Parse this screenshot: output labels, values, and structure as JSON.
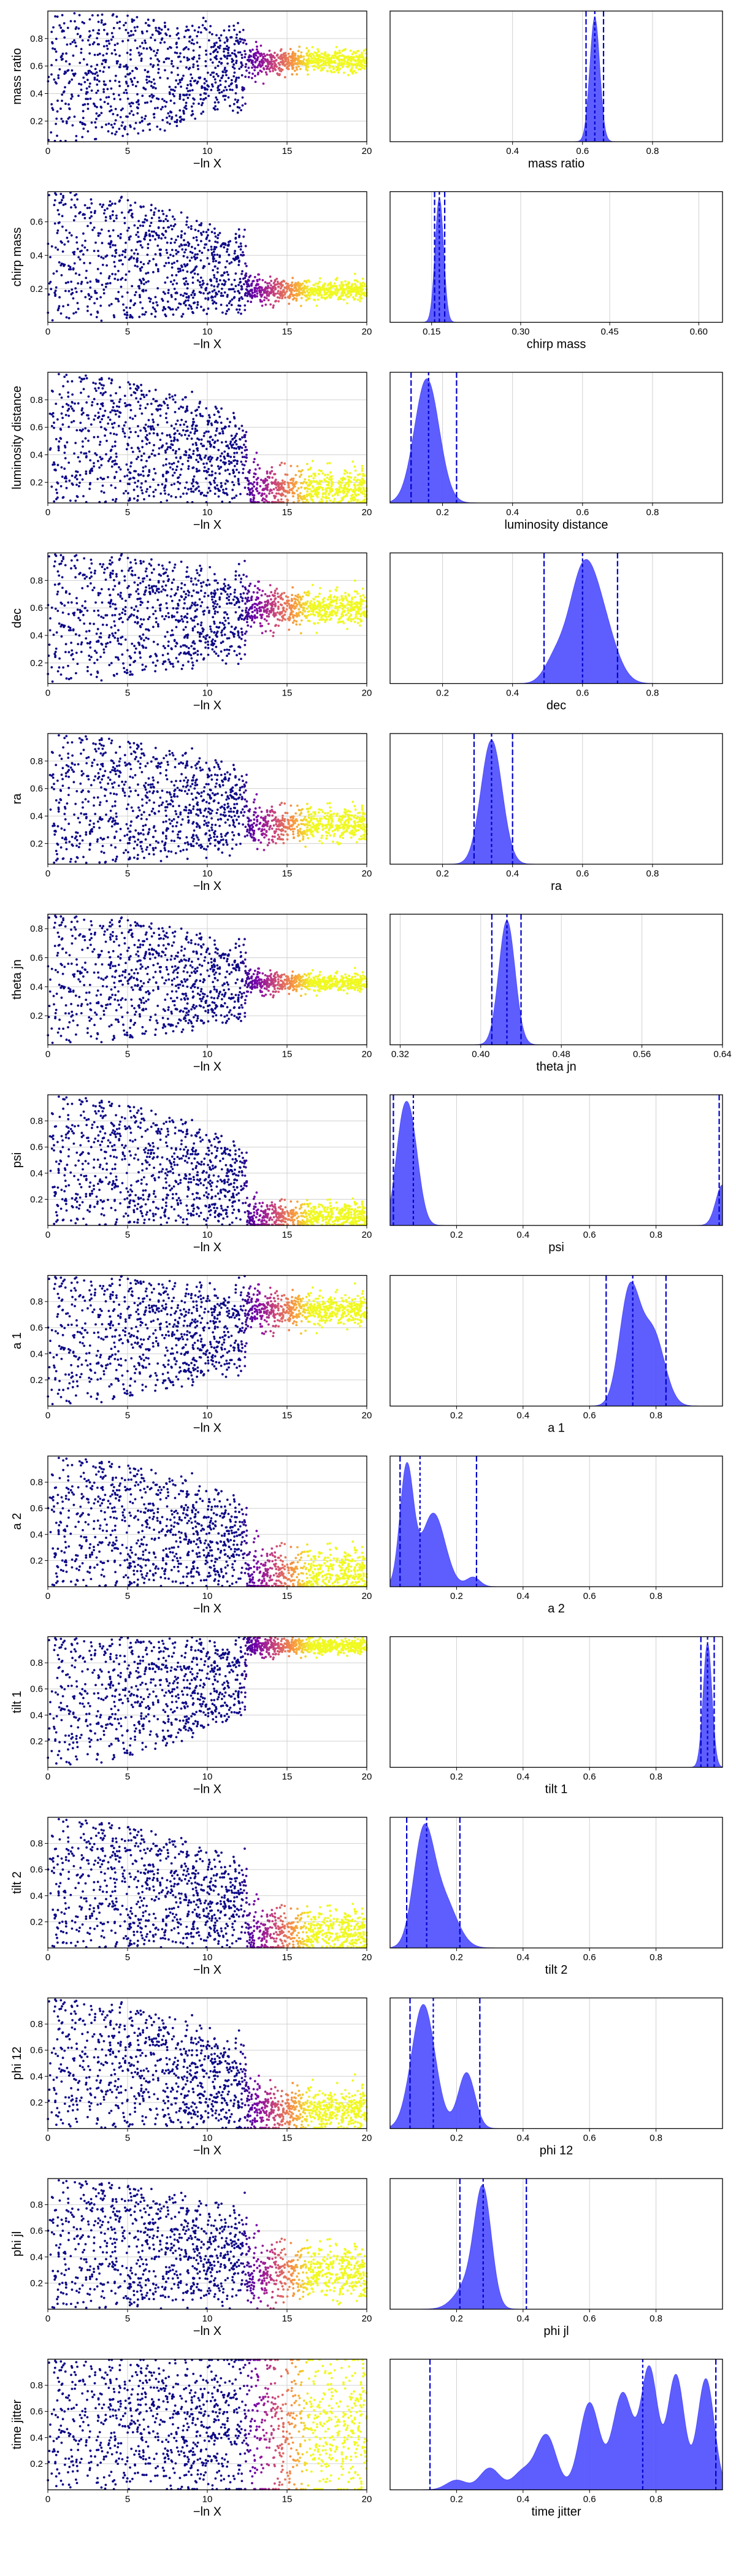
{
  "figure": {
    "trace_xlabel": "−ln X",
    "trace_xlim": [
      0,
      20
    ],
    "trace_xticks": [
      "0",
      "5",
      "10",
      "15",
      "20"
    ],
    "trace_grid": true,
    "hist_grid": true,
    "colormap": [
      "#0d0887",
      "#7e03a8",
      "#cc4778",
      "#f89540",
      "#f0f921"
    ],
    "fill_color": "#4c4cff",
    "line_color": "#0000cc"
  },
  "chart_data": [
    {
      "type": "scatter",
      "name": "mass ratio",
      "ylabel": "mass ratio",
      "yticks": [
        0.2,
        0.4,
        0.6,
        0.8
      ],
      "ylim": [
        0.05,
        1.0
      ],
      "hist_xlabel": "mass ratio",
      "hist_xlim": [
        0.05,
        1.0
      ],
      "hist_xticks": [
        0.4,
        0.6,
        0.8
      ],
      "quantiles": [
        0.61,
        0.635,
        0.66
      ],
      "peaks": [
        {
          "mu": 0.635,
          "sigma": 0.014,
          "h": 1.0
        }
      ],
      "converge": [
        0.635,
        0.04
      ]
    },
    {
      "type": "scatter",
      "name": "chirp mass",
      "ylabel": "chirp mass",
      "yticks": [
        0.2,
        0.4,
        0.6
      ],
      "ylim": [
        0.0,
        0.78
      ],
      "hist_xlabel": "chirp mass",
      "hist_xlim": [
        0.08,
        0.64
      ],
      "hist_xticks": [
        0.15,
        0.3,
        0.45,
        0.6
      ],
      "quantiles": [
        0.155,
        0.163,
        0.172
      ],
      "peaks": [
        {
          "mu": 0.163,
          "sigma": 0.007,
          "h": 1.0
        }
      ],
      "converge": [
        0.19,
        0.03
      ]
    },
    {
      "type": "scatter",
      "name": "luminosity distance",
      "ylabel": "luminosity distance",
      "yticks": [
        0.2,
        0.4,
        0.6,
        0.8
      ],
      "ylim": [
        0.05,
        1.0
      ],
      "hist_xlabel": "luminosity distance",
      "hist_xlim": [
        0.05,
        1.0
      ],
      "hist_xticks": [
        0.2,
        0.4,
        0.6,
        0.8
      ],
      "quantiles": [
        0.11,
        0.16,
        0.24
      ],
      "peaks": [
        {
          "mu": 0.155,
          "sigma": 0.035,
          "h": 1.0
        }
      ],
      "converge": [
        0.16,
        0.07
      ]
    },
    {
      "type": "scatter",
      "name": "dec",
      "ylabel": "dec",
      "yticks": [
        0.2,
        0.4,
        0.6,
        0.8
      ],
      "ylim": [
        0.05,
        1.0
      ],
      "hist_xlabel": "dec",
      "hist_xlim": [
        0.05,
        1.0
      ],
      "hist_xticks": [
        0.2,
        0.4,
        0.6,
        0.8
      ],
      "quantiles": [
        0.49,
        0.6,
        0.7
      ],
      "peaks": [
        {
          "mu": 0.6,
          "sigma": 0.04,
          "h": 1.0
        },
        {
          "mu": 0.66,
          "sigma": 0.04,
          "h": 0.45
        },
        {
          "mu": 0.52,
          "sigma": 0.03,
          "h": 0.2
        }
      ],
      "converge": [
        0.6,
        0.06
      ]
    },
    {
      "type": "scatter",
      "name": "ra",
      "ylabel": "ra",
      "yticks": [
        0.2,
        0.4,
        0.6,
        0.8
      ],
      "ylim": [
        0.05,
        1.0
      ],
      "hist_xlabel": "ra",
      "hist_xlim": [
        0.05,
        1.0
      ],
      "hist_xticks": [
        0.2,
        0.4,
        0.6,
        0.8
      ],
      "quantiles": [
        0.29,
        0.34,
        0.4
      ],
      "peaks": [
        {
          "mu": 0.34,
          "sigma": 0.03,
          "h": 1.0
        }
      ],
      "converge": [
        0.34,
        0.06
      ]
    },
    {
      "type": "scatter",
      "name": "theta jn",
      "ylabel": "theta jn",
      "yticks": [
        0.2,
        0.4,
        0.6,
        0.8
      ],
      "ylim": [
        0.0,
        0.9
      ],
      "hist_xlabel": "theta jn",
      "hist_xlim": [
        0.31,
        0.64
      ],
      "hist_xticks": [
        0.32,
        0.4,
        0.48,
        0.56,
        0.64
      ],
      "quantiles": [
        0.411,
        0.426,
        0.44
      ],
      "peaks": [
        {
          "mu": 0.426,
          "sigma": 0.008,
          "h": 1.0
        }
      ],
      "converge": [
        0.43,
        0.03
      ]
    },
    {
      "type": "scatter",
      "name": "psi",
      "ylabel": "psi",
      "yticks": [
        0.2,
        0.4,
        0.6,
        0.8
      ],
      "ylim": [
        0.0,
        1.0
      ],
      "hist_xlabel": "psi",
      "hist_xlim": [
        0.0,
        1.0
      ],
      "hist_xticks": [
        0.2,
        0.4,
        0.6,
        0.8
      ],
      "quantiles": [
        0.01,
        0.07,
        0.99
      ],
      "peaks": [
        {
          "mu": 0.06,
          "sigma": 0.025,
          "h": 1.0
        },
        {
          "mu": 0.03,
          "sigma": 0.02,
          "h": 0.5
        },
        {
          "mu": 1.0,
          "sigma": 0.02,
          "h": 0.4
        }
      ],
      "converge": [
        0.07,
        0.05
      ]
    },
    {
      "type": "scatter",
      "name": "a 1",
      "ylabel": "a 1",
      "yticks": [
        0.2,
        0.4,
        0.6,
        0.8
      ],
      "ylim": [
        0.0,
        1.0
      ],
      "hist_xlabel": "a 1",
      "hist_xlim": [
        0.0,
        1.0
      ],
      "hist_xticks": [
        0.2,
        0.4,
        0.6,
        0.8
      ],
      "quantiles": [
        0.65,
        0.73,
        0.83
      ],
      "peaks": [
        {
          "mu": 0.72,
          "sigma": 0.03,
          "h": 1.0
        },
        {
          "mu": 0.79,
          "sigma": 0.035,
          "h": 0.65
        }
      ],
      "converge": [
        0.74,
        0.06
      ]
    },
    {
      "type": "scatter",
      "name": "a 2",
      "ylabel": "a 2",
      "yticks": [
        0.2,
        0.4,
        0.6,
        0.8
      ],
      "ylim": [
        0.0,
        1.0
      ],
      "hist_xlabel": "a 2",
      "hist_xlim": [
        0.0,
        1.0
      ],
      "hist_xticks": [
        0.2,
        0.4,
        0.6,
        0.8
      ],
      "quantiles": [
        0.03,
        0.09,
        0.26
      ],
      "peaks": [
        {
          "mu": 0.05,
          "sigma": 0.02,
          "h": 1.0
        },
        {
          "mu": 0.13,
          "sigma": 0.035,
          "h": 0.62
        },
        {
          "mu": 0.25,
          "sigma": 0.02,
          "h": 0.08
        }
      ],
      "converge": [
        0.1,
        0.09
      ]
    },
    {
      "type": "scatter",
      "name": "tilt 1",
      "ylabel": "tilt 1",
      "yticks": [
        0.2,
        0.4,
        0.6,
        0.8
      ],
      "ylim": [
        0.0,
        1.0
      ],
      "hist_xlabel": "tilt 1",
      "hist_xlim": [
        0.0,
        1.0
      ],
      "hist_xticks": [
        0.2,
        0.4,
        0.6,
        0.8
      ],
      "quantiles": [
        0.935,
        0.955,
        0.975
      ],
      "peaks": [
        {
          "mu": 0.955,
          "sigma": 0.013,
          "h": 1.0
        }
      ],
      "converge": [
        0.93,
        0.03
      ]
    },
    {
      "type": "scatter",
      "name": "tilt 2",
      "ylabel": "tilt 2",
      "yticks": [
        0.2,
        0.4,
        0.6,
        0.8
      ],
      "ylim": [
        0.0,
        1.0
      ],
      "hist_xlabel": "tilt 2",
      "hist_xlim": [
        0.0,
        1.0
      ],
      "hist_xticks": [
        0.2,
        0.4,
        0.6,
        0.8
      ],
      "quantiles": [
        0.05,
        0.11,
        0.21
      ],
      "peaks": [
        {
          "mu": 0.1,
          "sigma": 0.03,
          "h": 1.0
        },
        {
          "mu": 0.16,
          "sigma": 0.04,
          "h": 0.45
        }
      ],
      "converge": [
        0.12,
        0.08
      ]
    },
    {
      "type": "scatter",
      "name": "phi 12",
      "ylabel": "phi 12",
      "yticks": [
        0.2,
        0.4,
        0.6,
        0.8
      ],
      "ylim": [
        0.0,
        1.0
      ],
      "hist_xlabel": "phi 12",
      "hist_xlim": [
        0.0,
        1.0
      ],
      "hist_xticks": [
        0.2,
        0.4,
        0.6,
        0.8
      ],
      "quantiles": [
        0.06,
        0.13,
        0.27
      ],
      "peaks": [
        {
          "mu": 0.1,
          "sigma": 0.035,
          "h": 1.0
        },
        {
          "mu": 0.23,
          "sigma": 0.025,
          "h": 0.45
        }
      ],
      "converge": [
        0.15,
        0.08
      ]
    },
    {
      "type": "scatter",
      "name": "phi jl",
      "ylabel": "phi jl",
      "yticks": [
        0.2,
        0.4,
        0.6,
        0.8
      ],
      "ylim": [
        0.0,
        1.0
      ],
      "hist_xlabel": "phi jl",
      "hist_xlim": [
        0.0,
        1.0
      ],
      "hist_xticks": [
        0.2,
        0.4,
        0.6,
        0.8
      ],
      "quantiles": [
        0.21,
        0.28,
        0.41
      ],
      "peaks": [
        {
          "mu": 0.28,
          "sigma": 0.025,
          "h": 1.0
        },
        {
          "mu": 0.24,
          "sigma": 0.04,
          "h": 0.25
        }
      ],
      "converge": [
        0.28,
        0.1
      ]
    },
    {
      "type": "scatter",
      "name": "time jitter",
      "ylabel": "time jitter",
      "yticks": [
        0.2,
        0.4,
        0.6,
        0.8
      ],
      "ylim": [
        0.0,
        1.0
      ],
      "hist_xlabel": "time jitter",
      "hist_xlim": [
        0.0,
        1.0
      ],
      "hist_xticks": [
        0.2,
        0.4,
        0.6,
        0.8
      ],
      "quantiles": [
        0.12,
        0.76,
        0.98
      ],
      "peaks": [
        {
          "mu": 0.3,
          "sigma": 0.03,
          "h": 0.18
        },
        {
          "mu": 0.4,
          "sigma": 0.03,
          "h": 0.15
        },
        {
          "mu": 0.47,
          "sigma": 0.03,
          "h": 0.45
        },
        {
          "mu": 0.6,
          "sigma": 0.03,
          "h": 0.72
        },
        {
          "mu": 0.7,
          "sigma": 0.03,
          "h": 0.8
        },
        {
          "mu": 0.78,
          "sigma": 0.025,
          "h": 1.0
        },
        {
          "mu": 0.86,
          "sigma": 0.025,
          "h": 0.95
        },
        {
          "mu": 0.95,
          "sigma": 0.025,
          "h": 0.92
        },
        {
          "mu": 0.2,
          "sigma": 0.03,
          "h": 0.08
        }
      ],
      "converge": [
        0.5,
        0.3
      ]
    }
  ]
}
